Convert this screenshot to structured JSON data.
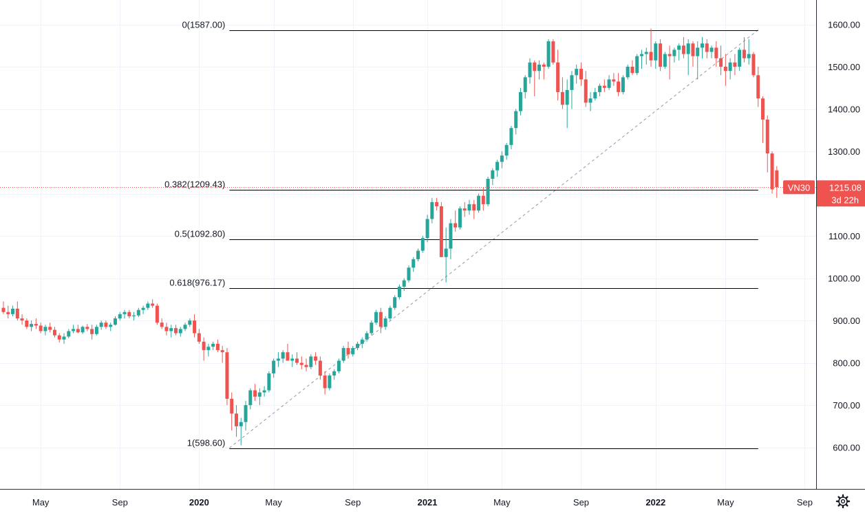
{
  "chart_data": {
    "type": "candlestick",
    "symbol": "VN30",
    "interval": "1W",
    "y_range": [
      500,
      1650
    ],
    "y_ticks": [
      600,
      700,
      800,
      900,
      1000,
      1100,
      1200,
      1300,
      1400,
      1500,
      1600
    ],
    "y_tick_labels": [
      "600.00",
      "700.00",
      "800.00",
      "900.00",
      "1000.00",
      "1100.00",
      "1300.00",
      "1400.00",
      "1500.00",
      "1600.00"
    ],
    "x_tick_labels": [
      {
        "label": "May",
        "week": 8,
        "bold": false
      },
      {
        "label": "Sep",
        "week": 25,
        "bold": false
      },
      {
        "label": "2020",
        "week": 42,
        "bold": true
      },
      {
        "label": "May",
        "week": 58,
        "bold": false
      },
      {
        "label": "Sep",
        "week": 75,
        "bold": false
      },
      {
        "label": "2021",
        "week": 91,
        "bold": true
      },
      {
        "label": "May",
        "week": 107,
        "bold": false
      },
      {
        "label": "Sep",
        "week": 124,
        "bold": false
      },
      {
        "label": "2022",
        "week": 140,
        "bold": true
      },
      {
        "label": "May",
        "week": 155,
        "bold": false
      },
      {
        "label": "Sep",
        "week": 172,
        "bold": false
      }
    ],
    "fibonacci": {
      "start_week": 48.5,
      "end_week": 162,
      "levels": [
        {
          "label": "0(1587.00)",
          "value": 1587.0
        },
        {
          "label": "0.382(1209.43)",
          "value": 1209.43
        },
        {
          "label": "0.5(1092.80)",
          "value": 1092.8
        },
        {
          "label": "0.618(976.17)",
          "value": 976.17
        },
        {
          "label": "1(598.60)",
          "value": 598.6
        }
      ]
    },
    "trendline": {
      "from_week": 48.5,
      "from_value": 598.6,
      "to_week": 162,
      "to_value": 1587.0
    },
    "last_price": {
      "symbol": "VN30",
      "value": "1215.08",
      "countdown": "3d 22h",
      "price": 1215.08
    },
    "candles": [
      [
        930,
        945,
        915,
        920
      ],
      [
        920,
        935,
        905,
        915
      ],
      [
        915,
        935,
        910,
        928
      ],
      [
        928,
        945,
        900,
        905
      ],
      [
        905,
        915,
        890,
        900
      ],
      [
        900,
        905,
        880,
        885
      ],
      [
        885,
        900,
        875,
        892
      ],
      [
        892,
        905,
        880,
        888
      ],
      [
        888,
        895,
        870,
        875
      ],
      [
        875,
        890,
        865,
        885
      ],
      [
        885,
        895,
        872,
        878
      ],
      [
        878,
        885,
        860,
        865
      ],
      [
        865,
        870,
        848,
        855
      ],
      [
        855,
        870,
        845,
        862
      ],
      [
        862,
        880,
        858,
        875
      ],
      [
        875,
        890,
        870,
        880
      ],
      [
        880,
        890,
        870,
        872
      ],
      [
        872,
        888,
        868,
        885
      ],
      [
        885,
        892,
        875,
        880
      ],
      [
        880,
        890,
        855,
        868
      ],
      [
        868,
        890,
        865,
        885
      ],
      [
        885,
        900,
        878,
        895
      ],
      [
        895,
        900,
        880,
        885
      ],
      [
        885,
        895,
        875,
        890
      ],
      [
        890,
        910,
        888,
        905
      ],
      [
        905,
        920,
        900,
        915
      ],
      [
        915,
        925,
        905,
        920
      ],
      [
        920,
        925,
        905,
        910
      ],
      [
        910,
        920,
        900,
        912
      ],
      [
        912,
        930,
        908,
        925
      ],
      [
        925,
        935,
        915,
        930
      ],
      [
        930,
        945,
        925,
        940
      ],
      [
        940,
        950,
        930,
        935
      ],
      [
        935,
        940,
        890,
        895
      ],
      [
        895,
        905,
        880,
        885
      ],
      [
        885,
        895,
        865,
        875
      ],
      [
        875,
        890,
        860,
        882
      ],
      [
        882,
        890,
        865,
        870
      ],
      [
        870,
        885,
        862,
        880
      ],
      [
        880,
        895,
        875,
        890
      ],
      [
        890,
        905,
        885,
        900
      ],
      [
        900,
        915,
        860,
        870
      ],
      [
        870,
        880,
        845,
        850
      ],
      [
        850,
        860,
        805,
        830
      ],
      [
        830,
        845,
        815,
        838
      ],
      [
        838,
        850,
        830,
        845
      ],
      [
        845,
        855,
        825,
        830
      ],
      [
        830,
        840,
        800,
        825
      ],
      [
        825,
        835,
        700,
        715
      ],
      [
        715,
        730,
        640,
        680
      ],
      [
        680,
        700,
        625,
        650
      ],
      [
        650,
        670,
        605,
        660
      ],
      [
        660,
        710,
        640,
        700
      ],
      [
        700,
        740,
        690,
        735
      ],
      [
        735,
        750,
        710,
        720
      ],
      [
        720,
        740,
        700,
        730
      ],
      [
        730,
        745,
        720,
        735
      ],
      [
        735,
        780,
        730,
        775
      ],
      [
        775,
        810,
        765,
        805
      ],
      [
        805,
        825,
        790,
        810
      ],
      [
        810,
        830,
        800,
        825
      ],
      [
        825,
        845,
        815,
        805
      ],
      [
        805,
        820,
        790,
        810
      ],
      [
        810,
        825,
        795,
        800
      ],
      [
        800,
        815,
        785,
        795
      ],
      [
        795,
        810,
        780,
        790
      ],
      [
        790,
        820,
        785,
        815
      ],
      [
        815,
        825,
        795,
        805
      ],
      [
        805,
        815,
        760,
        770
      ],
      [
        770,
        780,
        725,
        740
      ],
      [
        740,
        775,
        735,
        770
      ],
      [
        770,
        785,
        760,
        780
      ],
      [
        780,
        810,
        775,
        805
      ],
      [
        805,
        840,
        800,
        835
      ],
      [
        835,
        850,
        810,
        820
      ],
      [
        820,
        840,
        815,
        835
      ],
      [
        835,
        850,
        830,
        845
      ],
      [
        845,
        860,
        835,
        855
      ],
      [
        855,
        875,
        850,
        870
      ],
      [
        870,
        900,
        865,
        895
      ],
      [
        895,
        925,
        890,
        920
      ],
      [
        920,
        930,
        870,
        885
      ],
      [
        885,
        910,
        878,
        905
      ],
      [
        905,
        935,
        900,
        930
      ],
      [
        930,
        960,
        925,
        955
      ],
      [
        955,
        985,
        950,
        980
      ],
      [
        980,
        1000,
        970,
        995
      ],
      [
        995,
        1030,
        990,
        1025
      ],
      [
        1025,
        1050,
        1015,
        1045
      ],
      [
        1045,
        1070,
        1040,
        1065
      ],
      [
        1065,
        1100,
        1060,
        1095
      ],
      [
        1095,
        1150,
        1085,
        1140
      ],
      [
        1140,
        1190,
        1130,
        1180
      ],
      [
        1180,
        1190,
        1160,
        1170
      ],
      [
        1170,
        1180,
        1050,
        1050
      ],
      [
        1050,
        1120,
        990,
        1070
      ],
      [
        1070,
        1140,
        1045,
        1130
      ],
      [
        1130,
        1160,
        1110,
        1120
      ],
      [
        1120,
        1170,
        1115,
        1165
      ],
      [
        1165,
        1180,
        1145,
        1160
      ],
      [
        1160,
        1185,
        1150,
        1175
      ],
      [
        1175,
        1185,
        1140,
        1160
      ],
      [
        1160,
        1200,
        1155,
        1195
      ],
      [
        1195,
        1215,
        1160,
        1175
      ],
      [
        1175,
        1240,
        1170,
        1235
      ],
      [
        1235,
        1260,
        1220,
        1255
      ],
      [
        1255,
        1280,
        1240,
        1275
      ],
      [
        1275,
        1300,
        1260,
        1290
      ],
      [
        1290,
        1320,
        1280,
        1315
      ],
      [
        1315,
        1360,
        1305,
        1355
      ],
      [
        1355,
        1400,
        1340,
        1395
      ],
      [
        1395,
        1450,
        1385,
        1440
      ],
      [
        1440,
        1480,
        1425,
        1475
      ],
      [
        1475,
        1520,
        1460,
        1510
      ],
      [
        1510,
        1515,
        1430,
        1490
      ],
      [
        1490,
        1515,
        1470,
        1505
      ],
      [
        1505,
        1510,
        1470,
        1500
      ],
      [
        1500,
        1565,
        1495,
        1560
      ],
      [
        1560,
        1565,
        1505,
        1510
      ],
      [
        1510,
        1540,
        1420,
        1440
      ],
      [
        1440,
        1475,
        1400,
        1410
      ],
      [
        1410,
        1470,
        1355,
        1445
      ],
      [
        1445,
        1490,
        1400,
        1480
      ],
      [
        1480,
        1505,
        1460,
        1495
      ],
      [
        1495,
        1510,
        1455,
        1470
      ],
      [
        1470,
        1490,
        1405,
        1415
      ],
      [
        1415,
        1440,
        1395,
        1425
      ],
      [
        1425,
        1450,
        1420,
        1440
      ],
      [
        1440,
        1460,
        1430,
        1455
      ],
      [
        1455,
        1470,
        1440,
        1450
      ],
      [
        1450,
        1480,
        1445,
        1470
      ],
      [
        1470,
        1485,
        1455,
        1465
      ],
      [
        1465,
        1485,
        1430,
        1440
      ],
      [
        1440,
        1480,
        1435,
        1475
      ],
      [
        1475,
        1505,
        1470,
        1500
      ],
      [
        1500,
        1515,
        1480,
        1485
      ],
      [
        1485,
        1530,
        1480,
        1525
      ],
      [
        1525,
        1540,
        1495,
        1530
      ],
      [
        1530,
        1545,
        1505,
        1535
      ],
      [
        1535,
        1590,
        1500,
        1515
      ],
      [
        1515,
        1560,
        1495,
        1555
      ],
      [
        1555,
        1565,
        1490,
        1500
      ],
      [
        1500,
        1535,
        1495,
        1530
      ],
      [
        1530,
        1550,
        1470,
        1525
      ],
      [
        1525,
        1545,
        1510,
        1540
      ],
      [
        1540,
        1555,
        1515,
        1550
      ],
      [
        1550,
        1570,
        1520,
        1530
      ],
      [
        1530,
        1565,
        1480,
        1555
      ],
      [
        1555,
        1560,
        1500,
        1525
      ],
      [
        1525,
        1560,
        1470,
        1545
      ],
      [
        1545,
        1570,
        1520,
        1555
      ],
      [
        1555,
        1565,
        1520,
        1535
      ],
      [
        1535,
        1550,
        1520,
        1545
      ],
      [
        1545,
        1560,
        1500,
        1520
      ],
      [
        1520,
        1550,
        1480,
        1500
      ],
      [
        1500,
        1530,
        1455,
        1490
      ],
      [
        1490,
        1520,
        1470,
        1510
      ],
      [
        1510,
        1530,
        1480,
        1500
      ],
      [
        1500,
        1545,
        1490,
        1540
      ],
      [
        1540,
        1570,
        1510,
        1520
      ],
      [
        1520,
        1565,
        1505,
        1530
      ],
      [
        1530,
        1535,
        1475,
        1480
      ],
      [
        1480,
        1500,
        1405,
        1425
      ],
      [
        1425,
        1430,
        1320,
        1375
      ],
      [
        1375,
        1385,
        1250,
        1295
      ],
      [
        1295,
        1300,
        1200,
        1210
      ],
      [
        1255,
        1265,
        1190,
        1215
      ]
    ]
  }
}
